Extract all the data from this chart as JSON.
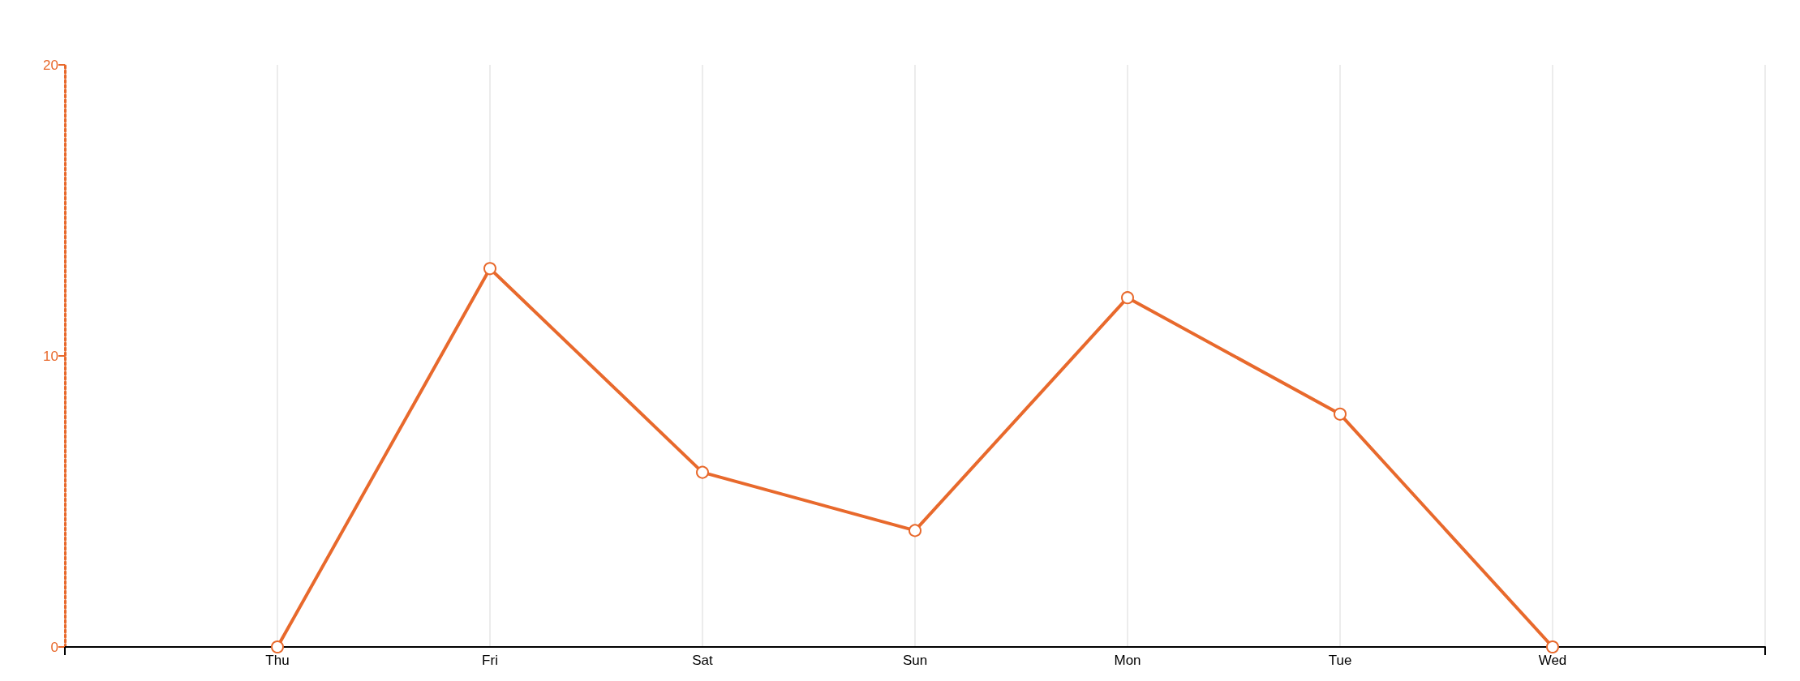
{
  "chart_data": {
    "type": "line",
    "categories": [
      null,
      "Thu",
      "Fri",
      "Sat",
      "Sun",
      "Mon",
      "Tue",
      "Wed",
      null
    ],
    "series": [
      {
        "color": "#e8692c",
        "values": [
          null,
          0,
          13,
          6,
          4,
          12,
          8,
          0,
          null
        ]
      }
    ],
    "ylim": [
      0,
      20
    ],
    "yticks": [
      0,
      10,
      20
    ],
    "grid": "x",
    "marker": "circle",
    "line_style": "solid"
  }
}
